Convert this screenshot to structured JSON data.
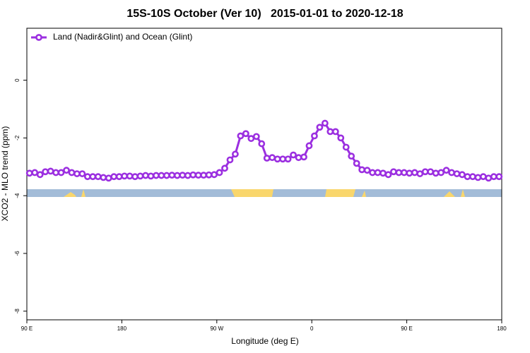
{
  "chart_data": {
    "type": "line",
    "title": "15S-10S October (Ver 10)   2015-01-01 to 2020-12-18",
    "x_label": "Longitude (deg E)",
    "y_label": "XCO2 - MLO trend (ppm)",
    "xlim": [
      90,
      540
    ],
    "ylim": [
      -8.3,
      1.8
    ],
    "xticks": [
      {
        "value": 90,
        "label": "90 E"
      },
      {
        "value": 180,
        "label": "180"
      },
      {
        "value": 270,
        "label": "90 W"
      },
      {
        "value": 360,
        "label": "0"
      },
      {
        "value": 450,
        "label": "90 E"
      },
      {
        "value": 540,
        "label": "180"
      }
    ],
    "yticks": [
      0,
      -2,
      -4,
      -6,
      -8
    ],
    "legend": "top-left",
    "x": [
      92.5,
      97.5,
      102.5,
      107.5,
      112.5,
      117.5,
      122.5,
      127.5,
      132.5,
      137.5,
      142.5,
      147.5,
      152.5,
      157.5,
      162.5,
      167.5,
      172.5,
      177.5,
      182.5,
      187.5,
      192.5,
      197.5,
      202.5,
      207.5,
      212.5,
      217.5,
      222.5,
      227.5,
      232.5,
      237.5,
      242.5,
      247.5,
      252.5,
      257.5,
      262.5,
      267.5,
      272.5,
      277.5,
      282.5,
      287.5,
      292.5,
      297.5,
      302.5,
      307.5,
      312.5,
      317.5,
      322.5,
      327.5,
      332.5,
      337.5,
      342.5,
      347.5,
      352.5,
      357.5,
      362.5,
      367.5,
      372.5,
      377.5,
      382.5,
      387.5,
      392.5,
      397.5,
      402.5,
      407.5,
      412.5,
      417.5,
      422.5,
      427.5,
      432.5,
      437.5,
      442.5,
      447.5,
      452.5,
      457.5,
      462.5,
      467.5,
      472.5,
      477.5,
      482.5,
      487.5,
      492.5,
      497.5,
      502.5,
      507.5,
      512.5,
      517.5,
      522.5,
      527.5,
      532.5,
      537.5
    ],
    "series": [
      {
        "name": "Land (Nadir&Glint) and Ocean (Glint)",
        "color": "#9b2fe0",
        "values": [
          -3.22,
          -3.2,
          -3.27,
          -3.17,
          -3.15,
          -3.2,
          -3.2,
          -3.12,
          -3.2,
          -3.24,
          -3.24,
          -3.34,
          -3.34,
          -3.34,
          -3.37,
          -3.39,
          -3.34,
          -3.34,
          -3.32,
          -3.32,
          -3.34,
          -3.32,
          -3.3,
          -3.32,
          -3.3,
          -3.3,
          -3.3,
          -3.29,
          -3.3,
          -3.29,
          -3.3,
          -3.28,
          -3.29,
          -3.29,
          -3.28,
          -3.27,
          -3.2,
          -3.05,
          -2.76,
          -2.56,
          -1.93,
          -1.85,
          -2.02,
          -1.95,
          -2.2,
          -2.7,
          -2.68,
          -2.73,
          -2.73,
          -2.73,
          -2.59,
          -2.68,
          -2.66,
          -2.27,
          -1.93,
          -1.63,
          -1.49,
          -1.78,
          -1.78,
          -2.0,
          -2.32,
          -2.63,
          -2.88,
          -3.1,
          -3.12,
          -3.2,
          -3.2,
          -3.22,
          -3.27,
          -3.17,
          -3.2,
          -3.2,
          -3.22,
          -3.2,
          -3.24,
          -3.17,
          -3.17,
          -3.22,
          -3.2,
          -3.12,
          -3.2,
          -3.24,
          -3.27,
          -3.34,
          -3.34,
          -3.37,
          -3.34,
          -3.39,
          -3.34,
          -3.34
        ]
      }
    ]
  }
}
